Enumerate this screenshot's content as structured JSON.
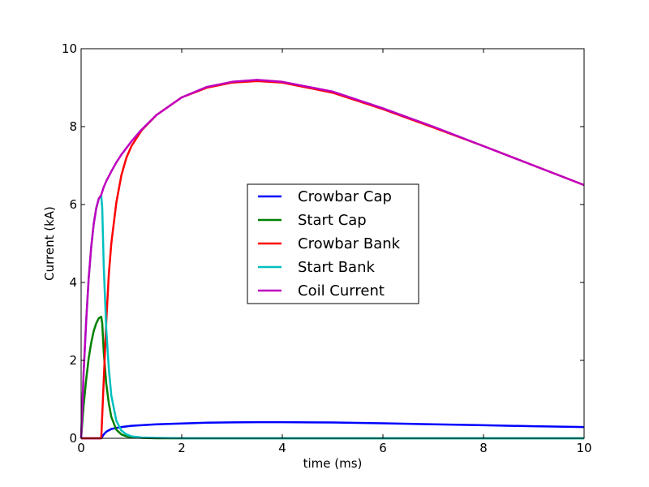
{
  "chart_data": {
    "type": "line",
    "title": "",
    "xlabel": "time (ms)",
    "ylabel": "Current (kA)",
    "xlim": [
      0,
      10
    ],
    "ylim": [
      0,
      10
    ],
    "xticks": [
      0,
      2,
      4,
      6,
      8,
      10
    ],
    "yticks": [
      0,
      2,
      4,
      6,
      8,
      10
    ],
    "xtick_labels": [
      "0",
      "2",
      "4",
      "6",
      "8",
      "10"
    ],
    "ytick_labels": [
      "0",
      "2",
      "4",
      "6",
      "8",
      "10"
    ],
    "grid": false,
    "legend_position": "center",
    "series": [
      {
        "name": "Crowbar Cap",
        "color": "#0000ff",
        "x": [
          0,
          0.4,
          0.45,
          0.5,
          0.6,
          0.8,
          1.0,
          1.5,
          2,
          2.5,
          3,
          3.5,
          4,
          5,
          6,
          7,
          8,
          9,
          10
        ],
        "y": [
          0,
          0,
          0.1,
          0.17,
          0.24,
          0.29,
          0.32,
          0.36,
          0.38,
          0.4,
          0.41,
          0.415,
          0.415,
          0.405,
          0.385,
          0.36,
          0.335,
          0.31,
          0.29
        ]
      },
      {
        "name": "Start Cap",
        "color": "#008000",
        "x": [
          0,
          0.05,
          0.1,
          0.15,
          0.2,
          0.25,
          0.3,
          0.35,
          0.4,
          0.42,
          0.45,
          0.5,
          0.55,
          0.6,
          0.7,
          0.8,
          0.9,
          1.0,
          1.2,
          1.5,
          2,
          10
        ],
        "y": [
          0,
          0.85,
          1.5,
          2.05,
          2.45,
          2.75,
          2.95,
          3.08,
          3.12,
          2.95,
          2.2,
          1.4,
          0.9,
          0.55,
          0.22,
          0.1,
          0.05,
          0.03,
          0.01,
          0,
          0,
          0
        ]
      },
      {
        "name": "Crowbar Bank",
        "color": "#ff0000",
        "x": [
          0,
          0.4,
          0.45,
          0.5,
          0.55,
          0.6,
          0.7,
          0.8,
          0.9,
          1.0,
          1.2,
          1.5,
          2,
          2.5,
          3,
          3.5,
          4,
          5,
          6,
          7,
          8,
          9,
          10
        ],
        "y": [
          0,
          0,
          1.5,
          3.0,
          4.2,
          5.0,
          6.05,
          6.75,
          7.2,
          7.5,
          7.9,
          8.3,
          8.75,
          9.0,
          9.13,
          9.17,
          9.13,
          8.87,
          8.45,
          7.98,
          7.5,
          7.0,
          6.5
        ]
      },
      {
        "name": "Start Bank",
        "color": "#00bfbf",
        "x": [
          0,
          0.05,
          0.1,
          0.15,
          0.2,
          0.25,
          0.3,
          0.35,
          0.4,
          0.42,
          0.45,
          0.5,
          0.55,
          0.6,
          0.7,
          0.8,
          0.9,
          1.0,
          1.2,
          1.5,
          2,
          10
        ],
        "y": [
          0,
          1.7,
          3.0,
          4.1,
          4.9,
          5.5,
          5.9,
          6.15,
          6.22,
          5.9,
          4.4,
          2.8,
          1.8,
          1.1,
          0.45,
          0.2,
          0.1,
          0.05,
          0.02,
          0.01,
          0,
          0
        ]
      },
      {
        "name": "Coil Current",
        "color": "#bf00bf",
        "x": [
          0,
          0.05,
          0.1,
          0.15,
          0.2,
          0.25,
          0.3,
          0.35,
          0.4,
          0.45,
          0.5,
          0.6,
          0.7,
          0.8,
          1.0,
          1.2,
          1.5,
          2,
          2.5,
          3,
          3.5,
          4,
          5,
          6,
          7,
          8,
          9,
          10
        ],
        "y": [
          0,
          1.7,
          3.0,
          4.1,
          4.9,
          5.5,
          5.9,
          6.15,
          6.25,
          6.45,
          6.6,
          6.85,
          7.08,
          7.28,
          7.62,
          7.92,
          8.3,
          8.75,
          9.02,
          9.15,
          9.2,
          9.15,
          8.9,
          8.47,
          8.0,
          7.5,
          7.0,
          6.5
        ]
      }
    ]
  }
}
